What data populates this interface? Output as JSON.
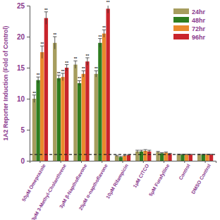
{
  "chart_data": {
    "type": "bar",
    "y_label": "1A2 Reporter Induction (Fold of Control)",
    "categories": [
      "50μM Omeprazole",
      "3μM 3-Methyl-Cholanthrene",
      "3μM β-Napthoflavone",
      "25μM α-napthoflavone",
      "10μM Rifampicin",
      "1μM CITCO",
      "5μM Furafylline",
      "Control",
      "DMSO Control"
    ],
    "series": [
      {
        "name": "24hr",
        "color": "#a69d5e",
        "values": [
          10,
          19,
          15.5,
          14,
          0.8,
          1.5,
          1.4,
          1,
          1
        ],
        "errors": [
          0.6,
          1,
          0.6,
          0.5,
          0.1,
          0.2,
          0.1,
          0.05,
          0.05
        ],
        "significance": [
          "**",
          "**",
          "**",
          "**",
          null,
          null,
          null,
          null,
          null
        ]
      },
      {
        "name": "48hr",
        "color": "#2e7d1f",
        "values": [
          13,
          13.3,
          12.5,
          19,
          0.6,
          1.5,
          1.2,
          1,
          1
        ],
        "errors": [
          0.5,
          0.5,
          0.4,
          0.7,
          0.1,
          0.2,
          0.1,
          0.05,
          0.05
        ],
        "significance": [
          "**",
          "**",
          "**",
          "**",
          null,
          null,
          null,
          null,
          null
        ]
      },
      {
        "name": "72hr",
        "color": "#ea8a2c",
        "values": [
          17.5,
          13.5,
          14,
          20.5,
          0.8,
          1.6,
          1.3,
          1,
          1
        ],
        "errors": [
          1,
          0.6,
          0.5,
          0.6,
          0.1,
          0.2,
          0.1,
          0.05,
          0.05
        ],
        "significance": [
          "**",
          "**",
          "**",
          "**",
          null,
          null,
          null,
          null,
          null
        ]
      },
      {
        "name": "96hr",
        "color": "#c9252c",
        "values": [
          23,
          15,
          16,
          24.5,
          0.9,
          1.5,
          1.1,
          1,
          1
        ],
        "errors": [
          1,
          0.5,
          0.6,
          0.7,
          0.1,
          0.2,
          0.1,
          0.05,
          0.05
        ],
        "significance": [
          "**",
          "**",
          "**",
          "**",
          null,
          null,
          null,
          null,
          null
        ]
      }
    ],
    "hline": 1,
    "ylim": [
      0,
      25
    ],
    "yticks": [
      0,
      5,
      10,
      15,
      20,
      25
    ],
    "legend": "upper right"
  }
}
